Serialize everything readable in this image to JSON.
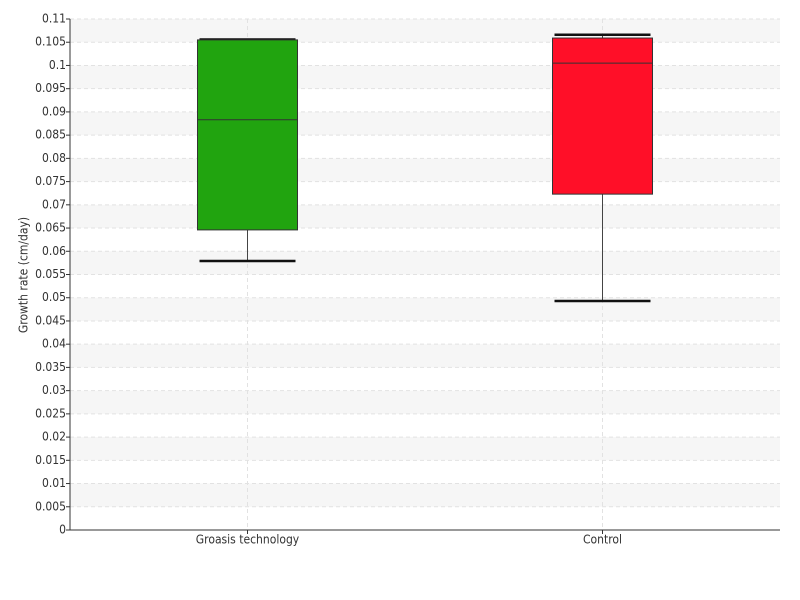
{
  "chart_data": {
    "type": "box",
    "ylabel": "Growth rate (cm/day)",
    "categories": [
      "Groasis technology",
      "Control"
    ],
    "boxes": [
      {
        "min": 0.0579,
        "q1": 0.0646,
        "median": 0.0883,
        "q3": 0.1055,
        "max": 0.1056,
        "color": "#21a40f"
      },
      {
        "min": 0.0493,
        "q1": 0.0723,
        "median": 0.1005,
        "q3": 0.1059,
        "max": 0.1066,
        "color": "#ff0f28"
      }
    ],
    "ylim": [
      0,
      0.11
    ],
    "yticks": [
      0,
      0.005,
      0.01,
      0.015,
      0.02,
      0.025,
      0.03,
      0.035,
      0.04,
      0.045,
      0.05,
      0.055,
      0.06,
      0.065,
      0.07,
      0.075,
      0.08,
      0.085,
      0.09,
      0.095,
      0.1,
      0.105,
      0.11
    ],
    "grid": true
  }
}
